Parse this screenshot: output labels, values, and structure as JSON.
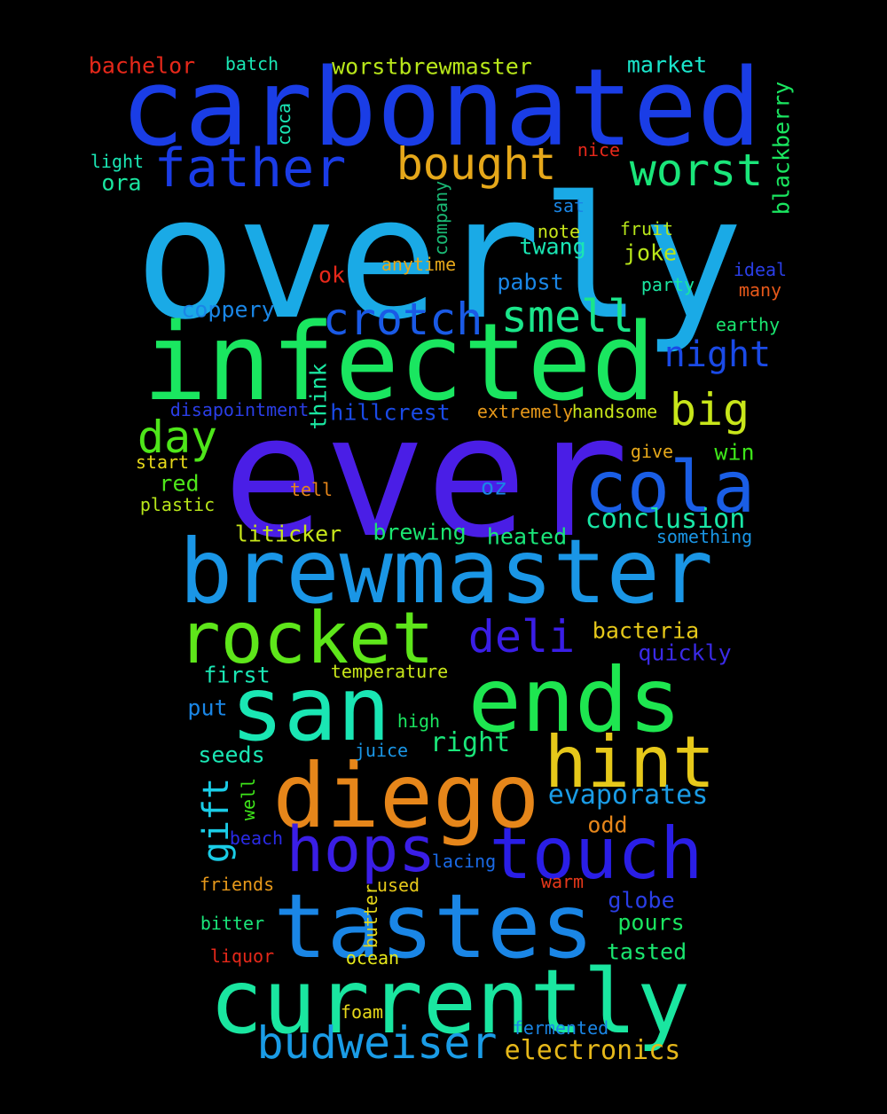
{
  "background": "#000000",
  "words": [
    {
      "text": "overly",
      "color": "#1aaae6"
    },
    {
      "text": "ever",
      "color": "#4a1ee6"
    },
    {
      "text": "carbonated",
      "color": "#1a3de6"
    },
    {
      "text": "infected",
      "color": "#1ae660"
    },
    {
      "text": "brewmaster",
      "color": "#1a96e6"
    },
    {
      "text": "ends",
      "color": "#1ee650"
    },
    {
      "text": "diego",
      "color": "#e6861a"
    },
    {
      "text": "san",
      "color": "#1ae6b4"
    },
    {
      "text": "tastes",
      "color": "#1a86e6"
    },
    {
      "text": "currently",
      "color": "#1ae6a0"
    },
    {
      "text": "rocket",
      "color": "#5ee61a"
    },
    {
      "text": "touch",
      "color": "#2a1ee6"
    },
    {
      "text": "cola",
      "color": "#1a5ee6"
    },
    {
      "text": "hint",
      "color": "#e6c81a"
    },
    {
      "text": "hops",
      "color": "#3a1ee6"
    },
    {
      "text": "father",
      "color": "#1a3ce6"
    },
    {
      "text": "budweiser",
      "color": "#1a9ce6"
    },
    {
      "text": "crotch",
      "color": "#1a5ae6"
    },
    {
      "text": "smell",
      "color": "#1ae68a"
    },
    {
      "text": "bought",
      "color": "#e6a81a"
    },
    {
      "text": "worst",
      "color": "#1ae67a"
    },
    {
      "text": "deli",
      "color": "#3a1ee6"
    },
    {
      "text": "big",
      "color": "#c8e61a"
    },
    {
      "text": "day",
      "color": "#4ee61a"
    },
    {
      "text": "night",
      "color": "#1a4ae6"
    },
    {
      "text": "gift",
      "color": "#1acce6"
    },
    {
      "text": "conclusion",
      "color": "#1ae6a6"
    },
    {
      "text": "evaporates",
      "color": "#1a9ce6"
    },
    {
      "text": "electronics",
      "color": "#e6b81a"
    },
    {
      "text": "right",
      "color": "#1ae67a"
    },
    {
      "text": "worstbrewmaster",
      "color": "#b8e61a"
    },
    {
      "text": "blackberry",
      "color": "#1ae660"
    },
    {
      "text": "liticker",
      "color": "#c8e61a"
    },
    {
      "text": "bacteria",
      "color": "#e6c81a"
    },
    {
      "text": "globe",
      "color": "#2a3ee6"
    },
    {
      "text": "pours",
      "color": "#1ae660"
    },
    {
      "text": "coppery",
      "color": "#1a86e6"
    },
    {
      "text": "hillcrest",
      "color": "#1a4ae6"
    },
    {
      "text": "twang",
      "color": "#1ae6b4"
    },
    {
      "text": "bachelor",
      "color": "#e6281a"
    },
    {
      "text": "market",
      "color": "#1ae6cc"
    },
    {
      "text": "odd",
      "color": "#e6861a"
    },
    {
      "text": "joke",
      "color": "#b8e61a"
    },
    {
      "text": "pabst",
      "color": "#1a86e6"
    },
    {
      "text": "heated",
      "color": "#1ae67a"
    },
    {
      "text": "brewing",
      "color": "#1ae670"
    },
    {
      "text": "first",
      "color": "#1ae6b4"
    },
    {
      "text": "seeds",
      "color": "#1ae6b4"
    },
    {
      "text": "oz",
      "color": "#1a86e6"
    },
    {
      "text": "red",
      "color": "#4ee61a"
    },
    {
      "text": "win",
      "color": "#3ee61a"
    },
    {
      "text": "tasted",
      "color": "#1ae670"
    },
    {
      "text": "put",
      "color": "#1a86e6"
    },
    {
      "text": "quickly",
      "color": "#3a2ae6"
    },
    {
      "text": "think",
      "color": "#1ae6a0"
    },
    {
      "text": "ora",
      "color": "#1ae6a0"
    },
    {
      "text": "ok",
      "color": "#e6281a"
    },
    {
      "text": "batch",
      "color": "#1ae6b4"
    },
    {
      "text": "coca",
      "color": "#1ae6b4"
    },
    {
      "text": "company",
      "color": "#1ab874"
    },
    {
      "text": "light",
      "color": "#1ae6b4"
    },
    {
      "text": "nice",
      "color": "#e6281a"
    },
    {
      "text": "sat",
      "color": "#1a86e6"
    },
    {
      "text": "fruit",
      "color": "#b8e61a"
    },
    {
      "text": "note",
      "color": "#c8e61a"
    },
    {
      "text": "anytime",
      "color": "#e6a81a"
    },
    {
      "text": "ideal",
      "color": "#2a3ee6"
    },
    {
      "text": "party",
      "color": "#1ae6a0"
    },
    {
      "text": "many",
      "color": "#e6581a"
    },
    {
      "text": "earthy",
      "color": "#1ae670"
    },
    {
      "text": "disapointment",
      "color": "#2a3ee6"
    },
    {
      "text": "extremely",
      "color": "#e6981a"
    },
    {
      "text": "handsome",
      "color": "#c8e61a"
    },
    {
      "text": "give",
      "color": "#e6a81a"
    },
    {
      "text": "start",
      "color": "#e6d81a"
    },
    {
      "text": "tell",
      "color": "#e6861a"
    },
    {
      "text": "plastic",
      "color": "#b8e61a"
    },
    {
      "text": "something",
      "color": "#1a96e6"
    },
    {
      "text": "temperature",
      "color": "#c8e61a"
    },
    {
      "text": "high",
      "color": "#1ae660"
    },
    {
      "text": "juice",
      "color": "#1a96e6"
    },
    {
      "text": "well",
      "color": "#3ee61a"
    },
    {
      "text": "beach",
      "color": "#2a2ae6"
    },
    {
      "text": "lacing",
      "color": "#1a6ae6"
    },
    {
      "text": "friends",
      "color": "#e6981a"
    },
    {
      "text": "used",
      "color": "#e6c81a"
    },
    {
      "text": "warm",
      "color": "#e6381a"
    },
    {
      "text": "bitter",
      "color": "#1ae67a"
    },
    {
      "text": "butter",
      "color": "#e6d81a"
    },
    {
      "text": "liquor",
      "color": "#e6281a"
    },
    {
      "text": "ocean",
      "color": "#e6e81a"
    },
    {
      "text": "foam",
      "color": "#e6d81a"
    },
    {
      "text": "fermented",
      "color": "#1a86e6"
    }
  ]
}
